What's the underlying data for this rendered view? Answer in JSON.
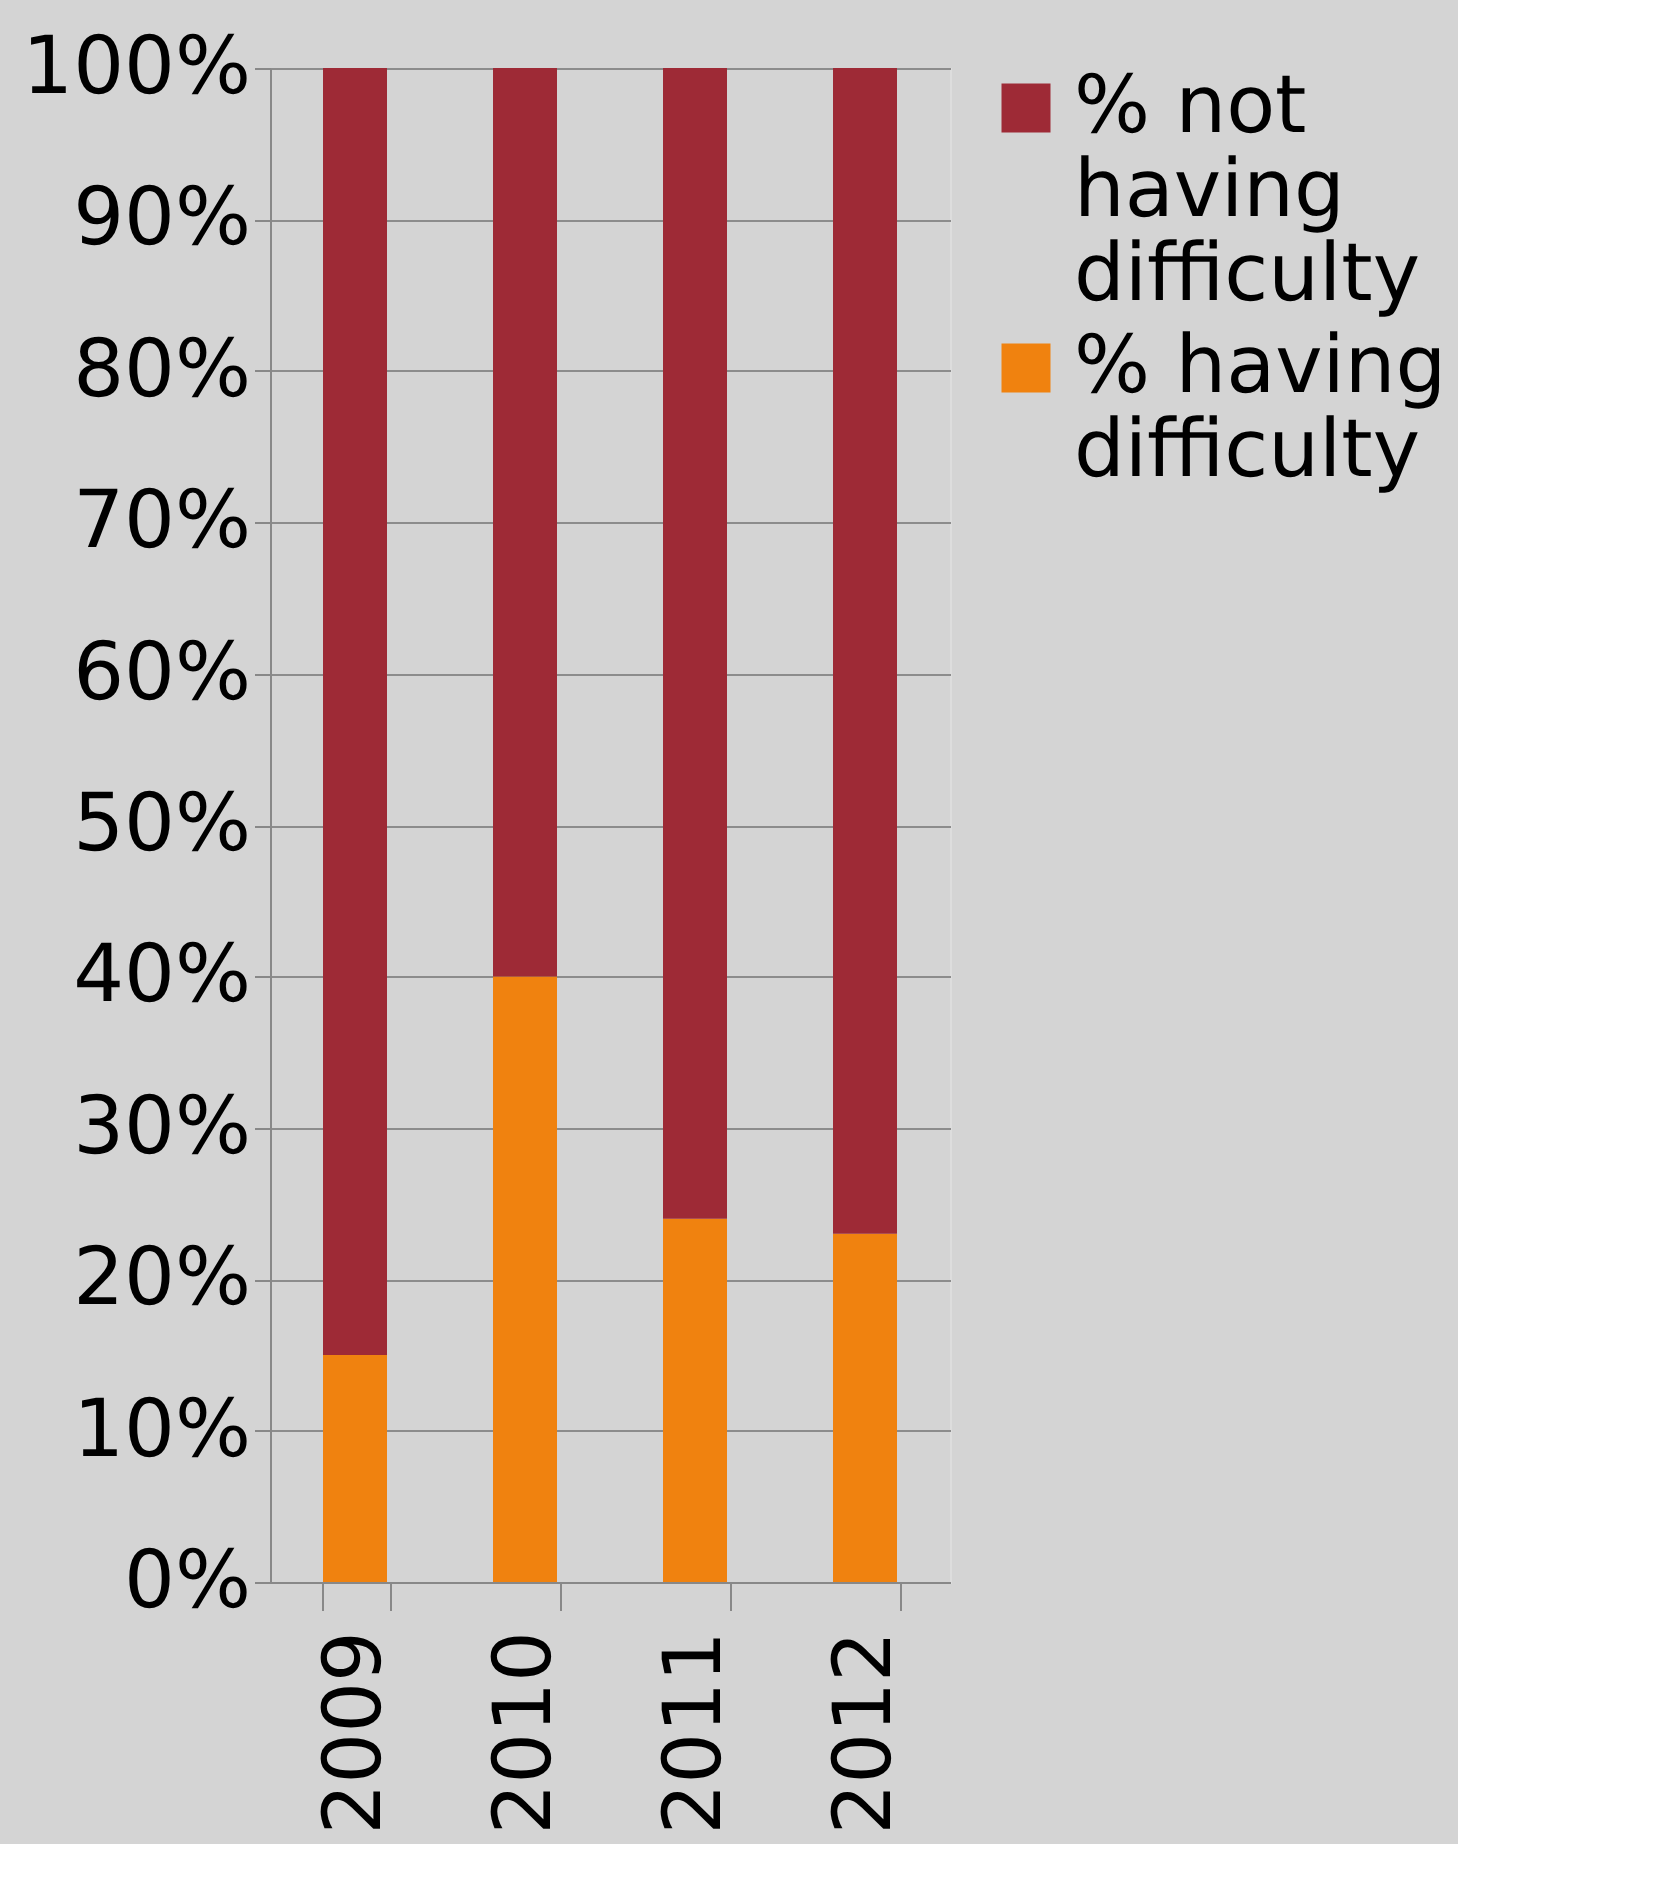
{
  "chart_data": {
    "type": "bar",
    "stacked": true,
    "categories": [
      "2009",
      "2010",
      "2011",
      "2012"
    ],
    "series": [
      {
        "name": "% having difficulty",
        "color": "#f0820f",
        "values": [
          15,
          40,
          24,
          23
        ]
      },
      {
        "name": "% not having difficulty",
        "color": "#9e2a36",
        "values": [
          85,
          60,
          76,
          77
        ]
      }
    ],
    "ylim": [
      0,
      100
    ],
    "yticks": [
      {
        "value": 0,
        "label": "0%"
      },
      {
        "value": 10,
        "label": "10%"
      },
      {
        "value": 20,
        "label": "20%"
      },
      {
        "value": 30,
        "label": "30%"
      },
      {
        "value": 40,
        "label": "40%"
      },
      {
        "value": 50,
        "label": "50%"
      },
      {
        "value": 60,
        "label": "60%"
      },
      {
        "value": 70,
        "label": "70%"
      },
      {
        "value": 80,
        "label": "80%"
      },
      {
        "value": 90,
        "label": "90%"
      },
      {
        "value": 100,
        "label": "100%"
      }
    ],
    "grid": "y",
    "legend": "right"
  }
}
